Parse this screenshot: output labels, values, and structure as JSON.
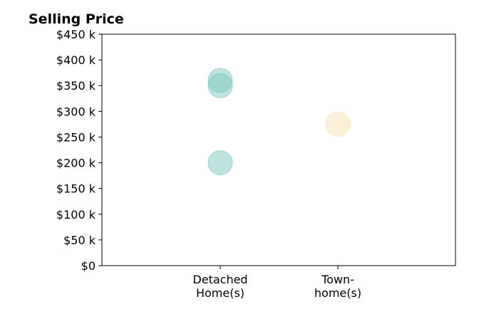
{
  "chart_data": {
    "type": "scatter",
    "title": "Selling Price",
    "xlabel": "",
    "ylabel": "",
    "categories": [
      [
        "Detached",
        "Home(s)"
      ],
      [
        "Town-",
        "home(s)"
      ]
    ],
    "y_ticks": [
      {
        "value": 0,
        "label": "$0"
      },
      {
        "value": 50,
        "label": "$50 k"
      },
      {
        "value": 100,
        "label": "$100 k"
      },
      {
        "value": 150,
        "label": "$150 k"
      },
      {
        "value": 200,
        "label": "$200 k"
      },
      {
        "value": 250,
        "label": "$250 k"
      },
      {
        "value": 300,
        "label": "$300 k"
      },
      {
        "value": 350,
        "label": "$350 k"
      },
      {
        "value": 400,
        "label": "$400 k"
      },
      {
        "value": 450,
        "label": "$450 k"
      }
    ],
    "ylim": [
      0,
      450
    ],
    "y_unit": "$ thousands",
    "points": [
      {
        "category": 0,
        "value": 360,
        "color": "#7fc9bf"
      },
      {
        "category": 0,
        "value": 350,
        "color": "#7fc9bf"
      },
      {
        "category": 0,
        "value": 200,
        "color": "#7fc9bf"
      },
      {
        "category": 1,
        "value": 275,
        "color": "#f5dfb0"
      }
    ],
    "grid": false,
    "legend": "none"
  }
}
